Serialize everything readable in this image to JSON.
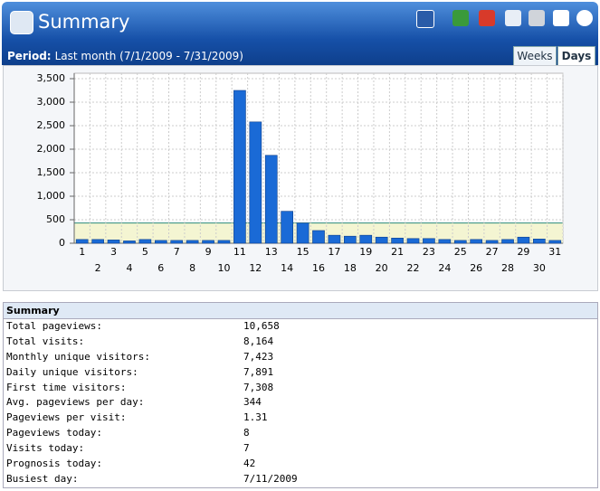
{
  "header": {
    "title": "Summary"
  },
  "period": {
    "label": "Period:",
    "text": "Last month (7/1/2009 - 7/31/2009)"
  },
  "tabs": [
    "Weeks",
    "Days"
  ],
  "chart_data": {
    "type": "bar",
    "categories": [
      "1",
      "2",
      "3",
      "4",
      "5",
      "6",
      "7",
      "8",
      "9",
      "10",
      "11",
      "12",
      "13",
      "14",
      "15",
      "16",
      "17",
      "18",
      "19",
      "20",
      "21",
      "22",
      "23",
      "24",
      "25",
      "26",
      "27",
      "28",
      "29",
      "30",
      "31"
    ],
    "values": [
      80,
      80,
      70,
      50,
      80,
      60,
      60,
      60,
      60,
      60,
      3250,
      2580,
      1870,
      680,
      430,
      270,
      170,
      150,
      170,
      130,
      110,
      100,
      100,
      80,
      60,
      80,
      60,
      80,
      130,
      90,
      60
    ],
    "color": "#1a6ad6",
    "reference_line": 430,
    "ylim": [
      0,
      3500
    ],
    "yticks": [
      0,
      500,
      {
        "value": 1000,
        "label": "1,000"
      },
      {
        "value": 1500,
        "label": "1,500"
      },
      {
        "value": 2000,
        "label": "2,000"
      },
      {
        "value": 2500,
        "label": "2,500"
      },
      {
        "value": 3000,
        "label": "3,000"
      },
      {
        "value": 3500,
        "label": "3,500"
      }
    ],
    "grid": true
  },
  "table": {
    "title": "Summary",
    "rows": [
      [
        "Total pageviews:",
        "10,658"
      ],
      [
        "Total visits:",
        "8,164"
      ],
      [
        "Monthly unique visitors:",
        "7,423"
      ],
      [
        "Daily unique visitors:",
        "7,891"
      ],
      [
        "First time visitors:",
        "7,308"
      ],
      [
        "Avg. pageviews per day:",
        "344"
      ],
      [
        "Pageviews per visit:",
        "1.31"
      ],
      [
        "Pageviews today:",
        "8"
      ],
      [
        "Visits today:",
        "7"
      ],
      [
        "Prognosis today:",
        "42"
      ],
      [
        "Busiest day:",
        "7/11/2009"
      ]
    ]
  }
}
